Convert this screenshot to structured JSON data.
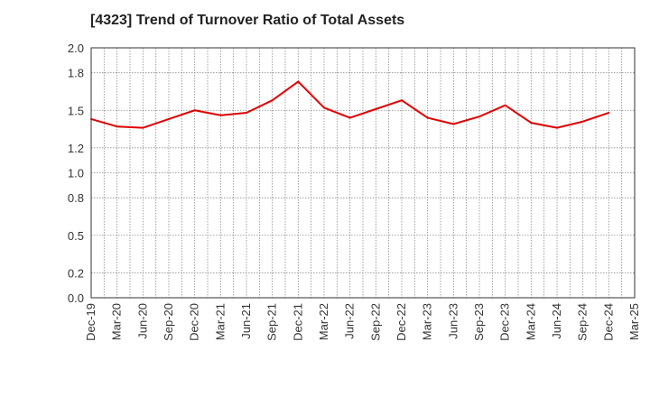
{
  "chart_data": {
    "type": "line",
    "title": "[4323]  Trend of Turnover Ratio of Total Assets",
    "xlabel": "",
    "ylabel": "",
    "ylim": [
      0,
      2.0
    ],
    "yticks": [
      0.0,
      0.2,
      0.5,
      0.8,
      1.0,
      1.2,
      1.5,
      1.8,
      2.0
    ],
    "ytick_labels": [
      "0.0",
      "0.2",
      "0.5",
      "0.8",
      "1.0",
      "1.2",
      "1.5",
      "1.8",
      "2.0"
    ],
    "categories": [
      "Dec-19",
      "Mar-20",
      "Jun-20",
      "Sep-20",
      "Dec-20",
      "Mar-21",
      "Jun-21",
      "Sep-21",
      "Dec-21",
      "Mar-22",
      "Jun-22",
      "Sep-22",
      "Dec-22",
      "Mar-23",
      "Jun-23",
      "Sep-23",
      "Dec-23",
      "Mar-24",
      "Jun-24",
      "Sep-24",
      "Dec-24",
      "Mar-25"
    ],
    "series": [
      {
        "color": "#e00000",
        "values": [
          1.43,
          1.37,
          1.36,
          1.43,
          1.5,
          1.46,
          1.48,
          1.58,
          1.73,
          1.52,
          1.44,
          1.51,
          1.58,
          1.44,
          1.39,
          1.45,
          1.54,
          1.4,
          1.36,
          1.41,
          1.48,
          null
        ]
      }
    ],
    "grid": true,
    "legend": "none"
  }
}
